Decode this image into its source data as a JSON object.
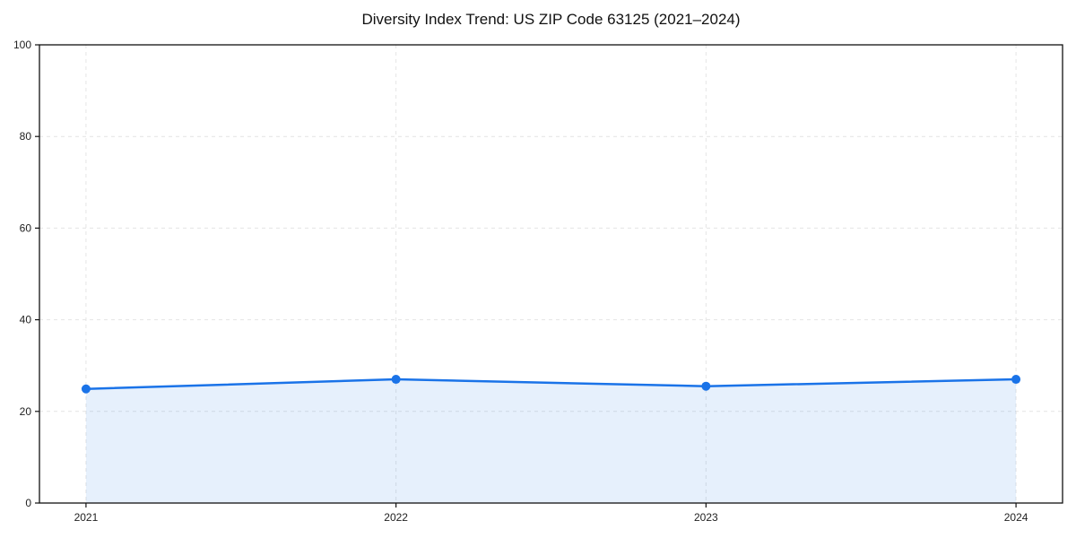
{
  "chart_data": {
    "type": "area",
    "title": "Diversity Index Trend: US ZIP Code 63125 (2021–2024)",
    "categories": [
      "2021",
      "2022",
      "2023",
      "2024"
    ],
    "series": [
      {
        "name": "Diversity Index",
        "values": [
          24.9,
          27.0,
          25.5,
          27.0
        ]
      }
    ],
    "xlabel": "",
    "ylabel": "",
    "ylim": [
      0,
      100
    ],
    "yticks": [
      0,
      20,
      40,
      60,
      80,
      100
    ],
    "grid": true,
    "grid_style": "dashed",
    "legend": "none",
    "marker": "circle",
    "colors": {
      "line": "#1a73e8",
      "marker": "#1a73e8",
      "fill": "#1a73e8",
      "fill_opacity": 0.11,
      "grid": "#e4e4e4",
      "spine": "#111111",
      "tick_label": "#222222",
      "title": "#111111",
      "background": "#ffffff"
    }
  }
}
